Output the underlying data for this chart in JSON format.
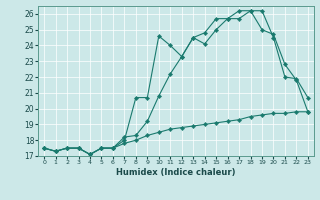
{
  "xlabel": "Humidex (Indice chaleur)",
  "xlim": [
    -0.5,
    23.5
  ],
  "ylim": [
    17,
    26.5
  ],
  "xticks": [
    0,
    1,
    2,
    3,
    4,
    5,
    6,
    7,
    8,
    9,
    10,
    11,
    12,
    13,
    14,
    15,
    16,
    17,
    18,
    19,
    20,
    21,
    22,
    23
  ],
  "yticks": [
    17,
    18,
    19,
    20,
    21,
    22,
    23,
    24,
    25,
    26
  ],
  "bg_color": "#cce8e8",
  "grid_color": "#ffffff",
  "line_color": "#1a7a6e",
  "line1_x": [
    0,
    1,
    2,
    3,
    4,
    5,
    6,
    7,
    8,
    9,
    10,
    11,
    12,
    13,
    14,
    15,
    16,
    17,
    18,
    19,
    20,
    21,
    22,
    23
  ],
  "line1_y": [
    17.5,
    17.3,
    17.5,
    17.5,
    17.1,
    17.5,
    17.5,
    18.0,
    20.7,
    20.7,
    24.6,
    24.0,
    23.3,
    24.5,
    24.1,
    25.0,
    25.7,
    25.7,
    26.2,
    25.0,
    24.7,
    22.8,
    21.8,
    19.8
  ],
  "line2_x": [
    0,
    1,
    2,
    3,
    4,
    5,
    6,
    7,
    8,
    9,
    10,
    11,
    12,
    13,
    14,
    15,
    16,
    17,
    18,
    19,
    20,
    21,
    22,
    23
  ],
  "line2_y": [
    17.5,
    17.3,
    17.5,
    17.5,
    17.1,
    17.5,
    17.5,
    18.2,
    18.3,
    19.2,
    20.8,
    22.2,
    23.3,
    24.5,
    24.8,
    25.7,
    25.7,
    26.2,
    26.2,
    26.2,
    24.5,
    22.0,
    21.9,
    20.7
  ],
  "line3_x": [
    0,
    1,
    2,
    3,
    4,
    5,
    6,
    7,
    8,
    9,
    10,
    11,
    12,
    13,
    14,
    15,
    16,
    17,
    18,
    19,
    20,
    21,
    22,
    23
  ],
  "line3_y": [
    17.5,
    17.3,
    17.5,
    17.5,
    17.1,
    17.5,
    17.5,
    17.8,
    18.0,
    18.3,
    18.5,
    18.7,
    18.8,
    18.9,
    19.0,
    19.1,
    19.2,
    19.3,
    19.5,
    19.6,
    19.7,
    19.7,
    19.8,
    19.8
  ]
}
